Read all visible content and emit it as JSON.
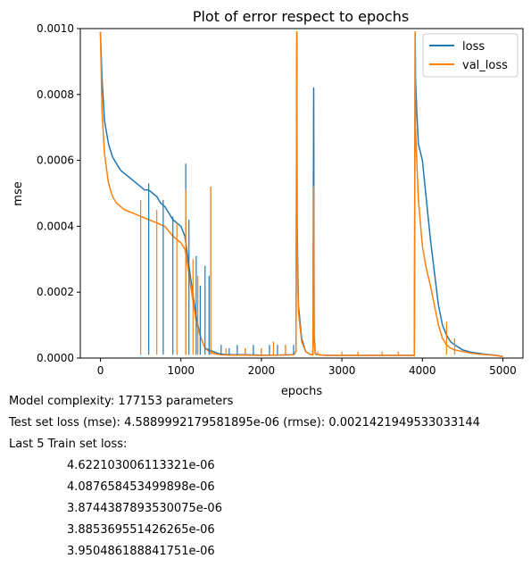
{
  "chart_data": {
    "type": "line",
    "title": "Plot of error respect to epochs",
    "xlabel": "epochs",
    "ylabel": "mse",
    "xlim": [
      -250,
      5250
    ],
    "ylim": [
      0,
      0.001
    ],
    "x_ticks": [
      0,
      1000,
      2000,
      3000,
      4000,
      5000
    ],
    "x_tick_labels": [
      "0",
      "1000",
      "2000",
      "3000",
      "4000",
      "5000"
    ],
    "y_ticks": [
      0,
      0.0002,
      0.0004,
      0.0006,
      0.0008,
      0.001
    ],
    "y_tick_labels": [
      "0.0000",
      "0.0002",
      "0.0004",
      "0.0006",
      "0.0008",
      "0.0010"
    ],
    "grid": false,
    "legend_position": "top-right",
    "series": [
      {
        "name": "loss",
        "color": "#1f77b4",
        "x": [
          0,
          20,
          50,
          100,
          150,
          200,
          250,
          300,
          350,
          400,
          450,
          500,
          550,
          600,
          650,
          700,
          750,
          800,
          850,
          900,
          950,
          1000,
          1050,
          1100,
          1150,
          1200,
          1250,
          1300,
          1350,
          1400,
          1450,
          1500,
          1600,
          1800,
          2000,
          2200,
          2400,
          2430,
          2440,
          2445,
          2460,
          2500,
          2550,
          2600,
          2640,
          2650,
          2655,
          2670,
          2700,
          2800,
          3000,
          3200,
          3400,
          3600,
          3800,
          3900,
          3910,
          3915,
          3930,
          3950,
          4000,
          4050,
          4100,
          4150,
          4200,
          4250,
          4300,
          4350,
          4400,
          4500,
          4600,
          4700,
          4800,
          4900,
          5000
        ],
        "values": [
          0.00099,
          0.00085,
          0.00072,
          0.00065,
          0.00061,
          0.00059,
          0.00057,
          0.00056,
          0.00055,
          0.00054,
          0.00053,
          0.00052,
          0.00051,
          0.00051,
          0.0005,
          0.00049,
          0.00047,
          0.00046,
          0.00044,
          0.00042,
          0.00041,
          0.0004,
          0.00037,
          0.00028,
          0.00019,
          0.00011,
          6e-05,
          3e-05,
          2.5e-05,
          2e-05,
          1.5e-05,
          1.2e-05,
          1e-05,
          1e-05,
          9e-06,
          9e-06,
          1e-05,
          2e-05,
          0.00099,
          0.0004,
          0.00016,
          6e-05,
          2e-05,
          1.2e-05,
          1e-05,
          0.00082,
          7e-05,
          1.5e-05,
          1e-05,
          8e-06,
          8e-06,
          8e-06,
          8e-06,
          8e-06,
          8e-06,
          8e-06,
          0.00099,
          0.00085,
          0.00075,
          0.00065,
          0.0006,
          0.00048,
          0.00036,
          0.00026,
          0.00016,
          0.0001,
          7e-05,
          5e-05,
          4e-05,
          2.5e-05,
          1.8e-05,
          1.4e-05,
          1.1e-05,
          9e-06,
          5e-06
        ]
      },
      {
        "name": "val_loss",
        "color": "#ff7f0e",
        "x": [
          0,
          20,
          50,
          100,
          150,
          200,
          250,
          300,
          400,
          500,
          600,
          700,
          800,
          900,
          1000,
          1050,
          1100,
          1150,
          1200,
          1250,
          1300,
          1350,
          1400,
          1450,
          1500,
          1600,
          1800,
          2000,
          2200,
          2400,
          2430,
          2440,
          2445,
          2460,
          2500,
          2550,
          2600,
          2640,
          2650,
          2655,
          2670,
          2700,
          2800,
          3000,
          3200,
          3400,
          3600,
          3800,
          3900,
          3910,
          3915,
          3930,
          3950,
          4000,
          4050,
          4100,
          4150,
          4200,
          4250,
          4300,
          4350,
          4400,
          4500,
          4600,
          4700,
          4800,
          4900,
          5000
        ],
        "values": [
          0.00099,
          0.00075,
          0.00062,
          0.00053,
          0.00049,
          0.00047,
          0.00046,
          0.00045,
          0.00044,
          0.00043,
          0.00042,
          0.00041,
          0.0004,
          0.00037,
          0.00035,
          0.00033,
          0.00026,
          0.00017,
          0.0001,
          6e-05,
          3e-05,
          2e-05,
          1.4e-05,
          1.2e-05,
          1e-05,
          9e-06,
          9e-06,
          8e-06,
          9e-06,
          1e-05,
          2e-05,
          0.00099,
          0.00035,
          0.00014,
          5e-05,
          2e-05,
          1.2e-05,
          1e-05,
          0.00052,
          5e-05,
          1.2e-05,
          1e-05,
          8e-06,
          8e-06,
          8e-06,
          8e-06,
          8e-06,
          8e-06,
          8e-06,
          0.00099,
          0.0007,
          0.0006,
          0.00048,
          0.00034,
          0.00027,
          0.00022,
          0.00016,
          0.0001,
          6e-05,
          4e-05,
          3e-05,
          2.5e-05,
          2e-05,
          1.5e-05,
          1.2e-05,
          1e-05,
          8e-06,
          5e-06
        ]
      }
    ],
    "annotation_spikes": [
      {
        "series": "loss",
        "points": [
          [
            600,
            0.00053
          ],
          [
            780,
            0.00048
          ],
          [
            900,
            0.00043
          ],
          [
            1060,
            0.00059
          ],
          [
            1100,
            0.00042
          ],
          [
            1190,
            0.00031
          ],
          [
            1240,
            0.00022
          ],
          [
            1300,
            0.00028
          ],
          [
            1350,
            0.00025
          ],
          [
            1370,
            0.00052
          ],
          [
            1500,
            4e-05
          ],
          [
            1600,
            3e-05
          ],
          [
            1700,
            4e-05
          ],
          [
            1800,
            3e-05
          ],
          [
            1900,
            4e-05
          ],
          [
            2000,
            3e-05
          ],
          [
            2100,
            4e-05
          ],
          [
            2200,
            4e-05
          ],
          [
            2300,
            4e-05
          ],
          [
            2400,
            4e-05
          ]
        ]
      },
      {
        "series": "val_loss",
        "points": [
          [
            500,
            0.00048
          ],
          [
            700,
            0.00045
          ],
          [
            950,
            0.00041
          ],
          [
            1060,
            0.00051
          ],
          [
            1150,
            0.0003
          ],
          [
            1210,
            0.00025
          ],
          [
            1370,
            0.00052
          ],
          [
            1560,
            3e-05
          ],
          [
            1800,
            3e-05
          ],
          [
            2000,
            3e-05
          ],
          [
            2150,
            5e-05
          ],
          [
            2300,
            4e-05
          ],
          [
            2700,
            2e-05
          ],
          [
            3000,
            2e-05
          ],
          [
            3200,
            2e-05
          ],
          [
            3500,
            2e-05
          ],
          [
            3700,
            2e-05
          ],
          [
            4300,
            0.00011
          ],
          [
            4400,
            6e-05
          ]
        ]
      }
    ]
  },
  "info": {
    "complexity": "Model complexity: 177153 parameters",
    "test_loss": "Test set loss (mse): 4.5889992179581895e-06 (rmse): 0.0021421949533033144",
    "last5_header": "Last 5 Train set loss:",
    "last5_values": [
      "4.622103006113321e-06",
      "4.087658453499898e-06",
      "3.8744387893530075e-06",
      "3.885369551426265e-06",
      "3.950486188841751e-06"
    ]
  }
}
